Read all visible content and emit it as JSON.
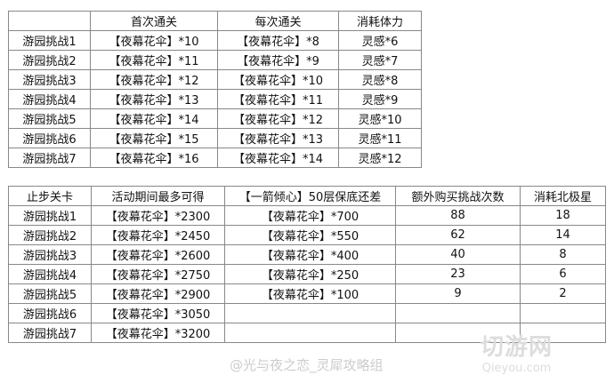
{
  "table1": {
    "headers": [
      "",
      "首次通关",
      "每次通关",
      "消耗体力"
    ],
    "rows": [
      [
        "游园挑战1",
        "【夜幕花伞】*10",
        "【夜幕花伞】*8",
        "灵感*6"
      ],
      [
        "游园挑战2",
        "【夜幕花伞】*11",
        "【夜幕花伞】*9",
        "灵感*7"
      ],
      [
        "游园挑战3",
        "【夜幕花伞】*12",
        "【夜幕花伞】*10",
        "灵感*8"
      ],
      [
        "游园挑战4",
        "【夜幕花伞】*13",
        "【夜幕花伞】*11",
        "灵感*9"
      ],
      [
        "游园挑战5",
        "【夜幕花伞】*14",
        "【夜幕花伞】*12",
        "灵感*10"
      ],
      [
        "游园挑战6",
        "【夜幕花伞】*15",
        "【夜幕花伞】*13",
        "灵感*11"
      ],
      [
        "游园挑战7",
        "【夜幕花伞】*16",
        "【夜幕花伞】*14",
        "灵感*12"
      ]
    ]
  },
  "table2": {
    "headers": [
      "止步关卡",
      "活动期间最多可得",
      "【一箭倾心】50层保底还差",
      "额外购买挑战次数",
      "消耗北极星"
    ],
    "rows": [
      [
        "游园挑战1",
        "【夜幕花伞】*2300",
        "【夜幕花伞】*700",
        "88",
        "18"
      ],
      [
        "游园挑战2",
        "【夜幕花伞】*2450",
        "【夜幕花伞】*550",
        "62",
        "14"
      ],
      [
        "游园挑战3",
        "【夜幕花伞】*2600",
        "【夜幕花伞】*400",
        "40",
        "8"
      ],
      [
        "游园挑战4",
        "【夜幕花伞】*2750",
        "【夜幕花伞】*250",
        "23",
        "6"
      ],
      [
        "游园挑战5",
        "【夜幕花伞】*2900",
        "【夜幕花伞】*100",
        "9",
        "2"
      ],
      [
        "游园挑战6",
        "【夜幕花伞】*3050",
        "",
        "",
        ""
      ],
      [
        "游园挑战7",
        "【夜幕花伞】*3200",
        "",
        "",
        ""
      ]
    ]
  },
  "watermark": "@光与夜之恋_灵犀攻略组",
  "logo": {
    "title": "切游网",
    "site": "Qieyou.com"
  }
}
